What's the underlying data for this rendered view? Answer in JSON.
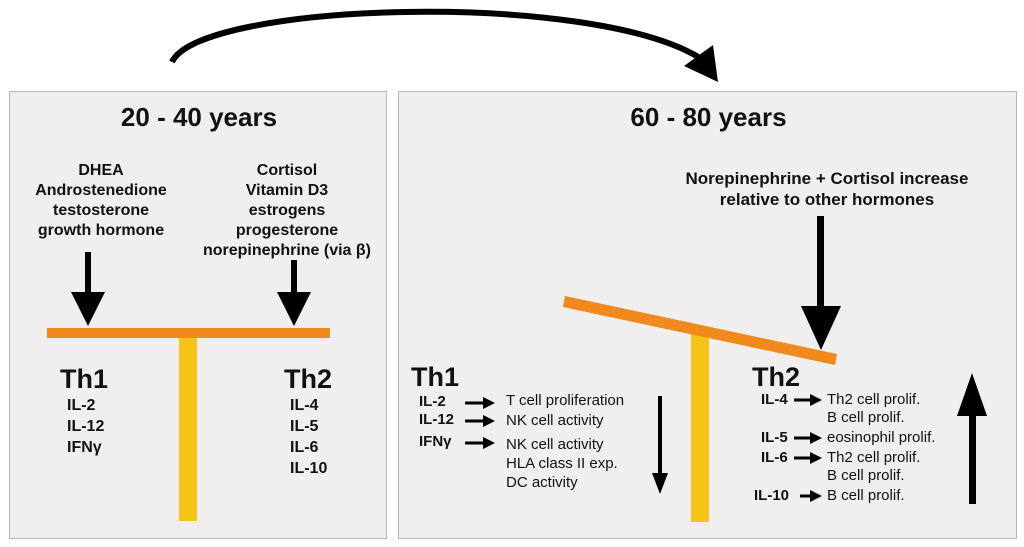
{
  "left_panel": {
    "title": "20 - 40 years",
    "th1_hormones": [
      "DHEA",
      "Androstenedione",
      "testosterone",
      "growth hormone"
    ],
    "th2_hormones": [
      "Cortisol",
      "Vitamin D3",
      "estrogens",
      "progesterone",
      "norepinephrine (via β)"
    ],
    "th1_label": "Th1",
    "th1_cytokines": [
      "IL-2",
      "IL-12",
      "IFNγ"
    ],
    "th2_label": "Th2",
    "th2_cytokines": [
      "IL-4",
      "IL-5",
      "IL-6",
      "IL-10"
    ]
  },
  "right_panel": {
    "title": "60 - 80 years",
    "statement_line1": "Norepinephrine + Cortisol increase",
    "statement_line2": "relative to other hormones",
    "th1_label": "Th1",
    "th1_cytokines": [
      "IL-2",
      "IL-12",
      "IFNγ"
    ],
    "th1_effects": [
      "T cell proliferation",
      "NK cell activity",
      "NK cell activity",
      "HLA class II exp.",
      "DC activity"
    ],
    "th2_label": "Th2",
    "th2_cytokines": [
      "IL-4",
      "IL-5",
      "IL-6",
      "IL-10"
    ],
    "th2_effects": [
      "Th2 cell prolif.",
      "B cell prolif.",
      "eosinophil prolif.",
      "Th2 cell prolif.",
      "B cell prolif.",
      "B cell prolif."
    ]
  },
  "colors": {
    "panel_bg": "#f0eeee",
    "beam": "#f08a1c",
    "post": "#f6c417",
    "arrow": "#000000"
  }
}
